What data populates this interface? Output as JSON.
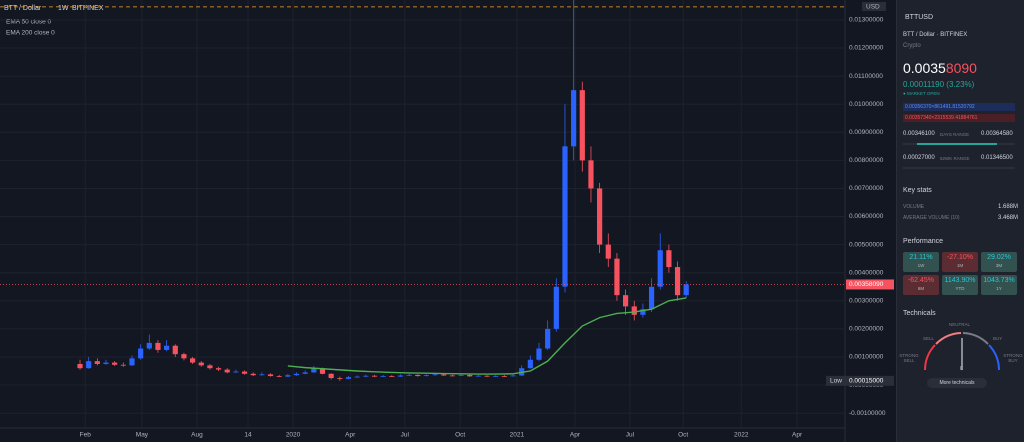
{
  "header": {
    "symbol": "BTT / Dollar",
    "interval": "1W",
    "exchange": "BITFINEX",
    "ema50": "EMA 50 close 0",
    "ema200": "EMA 200 close 0",
    "currency": "USD"
  },
  "chart_data": {
    "type": "candlestick",
    "xlim": [
      -18.48,
      176.67
    ],
    "xticks": [
      {
        "value": 1.2,
        "label": "Feb"
      },
      {
        "value": 14.3,
        "label": "May"
      },
      {
        "value": 27,
        "label": "Aug"
      },
      {
        "value": 38.8,
        "label": "14"
      },
      {
        "value": 49.2,
        "label": "2020"
      },
      {
        "value": 62.4,
        "label": "Apr"
      },
      {
        "value": 75,
        "label": "Jul"
      },
      {
        "value": 87.8,
        "label": "Oct"
      },
      {
        "value": 100.9,
        "label": "2021"
      },
      {
        "value": 114.3,
        "label": "Apr"
      },
      {
        "value": 127,
        "label": "Jul"
      },
      {
        "value": 139.3,
        "label": "Oct"
      },
      {
        "value": 152.7,
        "label": "2022"
      },
      {
        "value": 165.6,
        "label": "Apr"
      }
    ],
    "ylim": [
      -0.00153,
      0.01371
    ],
    "yticks": [
      {
        "value": 0.013,
        "label": "0.01300000"
      },
      {
        "value": 0.012,
        "label": "0.01200000"
      },
      {
        "value": 0.011,
        "label": "0.01100000"
      },
      {
        "value": 0.01,
        "label": "0.01000000"
      },
      {
        "value": 0.009,
        "label": "0.00900000"
      },
      {
        "value": 0.008,
        "label": "0.00800000"
      },
      {
        "value": 0.007,
        "label": "0.00700000"
      },
      {
        "value": 0.006,
        "label": "0.00600000"
      },
      {
        "value": 0.005,
        "label": "0.00500000"
      },
      {
        "value": 0.004,
        "label": "0.00400000"
      },
      {
        "value": 0.003,
        "label": "0.00300000"
      },
      {
        "value": 0.002,
        "label": "0.00200000"
      },
      {
        "value": 0.001,
        "label": "0.00100000"
      },
      {
        "value": 0,
        "label": "0.00000000"
      },
      {
        "value": -0.001,
        "label": "-0.00100000"
      }
    ],
    "grid": true,
    "up_color": "#2962ff",
    "down_color": "#f7525f",
    "x": [
      0,
      2,
      4,
      6,
      8,
      10,
      12,
      14,
      16,
      18,
      20,
      22,
      24,
      26,
      28,
      30,
      32,
      34,
      36,
      38,
      40,
      42,
      44,
      46,
      48,
      50,
      52,
      54,
      56,
      58,
      60,
      62,
      64,
      66,
      68,
      70,
      72,
      74,
      76,
      78,
      80,
      82,
      84,
      86,
      88,
      90,
      92,
      94,
      96,
      98,
      100,
      102,
      104,
      106,
      108,
      110,
      112,
      114,
      116,
      118,
      120,
      122,
      124,
      126,
      128,
      130,
      132,
      134,
      136,
      138,
      140
    ],
    "open": [
      0.00075,
      0.0006,
      0.00085,
      0.00075,
      0.0008,
      0.00072,
      0.0007,
      0.00095,
      0.0013,
      0.0015,
      0.00125,
      0.0014,
      0.0011,
      0.00095,
      0.0008,
      0.0007,
      0.0006,
      0.00055,
      0.00045,
      0.00048,
      0.0004,
      0.00035,
      0.00038,
      0.00032,
      0.0003,
      0.00035,
      0.0004,
      0.00045,
      0.0006,
      0.0004,
      0.00025,
      0.00022,
      0.00028,
      0.0003,
      0.00033,
      0.0003,
      0.00032,
      0.0003,
      0.00034,
      0.00036,
      0.00032,
      0.00035,
      0.00038,
      0.00034,
      0.00033,
      0.00036,
      0.00031,
      0.00033,
      0.0003,
      0.00032,
      0.00031,
      0.00034,
      0.0006,
      0.0009,
      0.0013,
      0.002,
      0.0035,
      0.0085,
      0.0105,
      0.008,
      0.007,
      0.005,
      0.0045,
      0.0032,
      0.0028,
      0.0025,
      0.0027,
      0.0035,
      0.0048,
      0.0042,
      0.0032
    ],
    "high": [
      0.0009,
      0.001,
      0.00095,
      0.0009,
      0.00085,
      0.0008,
      0.00105,
      0.00145,
      0.0018,
      0.0016,
      0.0016,
      0.00145,
      0.00115,
      0.001,
      0.00085,
      0.00075,
      0.00065,
      0.0006,
      0.00055,
      0.00052,
      0.00045,
      0.00045,
      0.00042,
      0.00036,
      0.0004,
      0.00045,
      0.00052,
      0.00068,
      0.00062,
      0.00042,
      0.0003,
      0.00032,
      0.00034,
      0.00037,
      0.00036,
      0.00036,
      0.00035,
      0.00038,
      0.0004,
      0.00038,
      0.00038,
      0.00042,
      0.0004,
      0.00037,
      0.00039,
      0.00038,
      0.00036,
      0.00035,
      0.00035,
      0.00035,
      0.00038,
      0.0007,
      0.00105,
      0.0015,
      0.0023,
      0.0038,
      0.01,
      0.01371,
      0.0108,
      0.0085,
      0.0072,
      0.0054,
      0.0047,
      0.0034,
      0.003,
      0.0029,
      0.0038,
      0.0054,
      0.005,
      0.0044,
      0.0037
    ],
    "low": [
      0.00055,
      0.00058,
      0.0007,
      0.00072,
      0.00068,
      0.00065,
      0.00068,
      0.0009,
      0.00125,
      0.00115,
      0.0012,
      0.001,
      0.00088,
      0.00075,
      0.00065,
      0.00055,
      0.0005,
      0.00042,
      0.00043,
      0.00037,
      0.00032,
      0.00033,
      0.0003,
      0.00028,
      0.00028,
      0.00033,
      0.00038,
      0.00043,
      0.00038,
      0.0002,
      0.00015,
      0.0002,
      0.00026,
      0.00028,
      0.00028,
      0.00029,
      0.00028,
      0.00029,
      0.00032,
      0.0003,
      0.00031,
      0.00033,
      0.00032,
      0.00031,
      0.00032,
      0.00029,
      0.0003,
      0.00028,
      0.00029,
      0.00029,
      0.0003,
      0.00032,
      0.00058,
      0.00085,
      0.00125,
      0.0019,
      0.0033,
      0.008,
      0.0076,
      0.0065,
      0.0047,
      0.0042,
      0.003,
      0.0025,
      0.0023,
      0.0024,
      0.0026,
      0.0034,
      0.004,
      0.003,
      0.0031
    ],
    "close": [
      0.0006,
      0.00085,
      0.00075,
      0.0008,
      0.00072,
      0.0007,
      0.00095,
      0.0013,
      0.0015,
      0.00125,
      0.0014,
      0.0011,
      0.00095,
      0.0008,
      0.0007,
      0.0006,
      0.00055,
      0.00045,
      0.00048,
      0.0004,
      0.00035,
      0.00038,
      0.00032,
      0.0003,
      0.00035,
      0.0004,
      0.00045,
      0.0006,
      0.0004,
      0.00025,
      0.00022,
      0.00028,
      0.0003,
      0.00033,
      0.0003,
      0.00032,
      0.0003,
      0.00034,
      0.00036,
      0.00032,
      0.00035,
      0.00038,
      0.00034,
      0.00033,
      0.00036,
      0.00031,
      0.00033,
      0.0003,
      0.00032,
      0.00031,
      0.00034,
      0.0006,
      0.0009,
      0.0013,
      0.002,
      0.0035,
      0.0085,
      0.0105,
      0.008,
      0.007,
      0.005,
      0.0045,
      0.0032,
      0.0028,
      0.0025,
      0.0027,
      0.0035,
      0.0048,
      0.0042,
      0.0032,
      0.0035809
    ],
    "series": [
      {
        "name": "EMA 200",
        "color": "#4caf50",
        "x": [
          48,
          52,
          56,
          60,
          64,
          68,
          72,
          76,
          80,
          84,
          88,
          92,
          96,
          100,
          104,
          108,
          112,
          116,
          120,
          124,
          128,
          132,
          136,
          140
        ],
        "values": [
          0.00068,
          0.00062,
          0.00058,
          0.00054,
          0.0005,
          0.00047,
          0.00045,
          0.00043,
          0.00042,
          0.00041,
          0.0004,
          0.00039,
          0.00039,
          0.0004,
          0.0005,
          0.00085,
          0.0015,
          0.0021,
          0.0024,
          0.00255,
          0.0026,
          0.0027,
          0.003,
          0.0031
        ]
      }
    ],
    "high_line": 0.013465,
    "last_price_label": "0.00358090",
    "low_marker": {
      "text": "Low",
      "value": 0.00015,
      "label": "0.00015000"
    }
  },
  "panel": {
    "symbol": "BTTUSD",
    "description": "BTT / Dollar · BITFINEX",
    "kind": "Crypto",
    "price_main": "0.0035",
    "price_tail": "8090",
    "change": "0.00011190 (3.23%)",
    "status": "● MARKET OPEN",
    "bid": "0.00356370×861491.81520792",
    "ask": "0.00357340×2315539.41884761",
    "days_range": {
      "low": "0.00346100",
      "label": "DAYS RANGE",
      "high": "0.00364580"
    },
    "week52_range": {
      "low": "0.00027000",
      "label": "52WK RANGE",
      "high": "0.01346500"
    },
    "key_stats": {
      "title": "Key stats",
      "rows": [
        [
          "VOLUME",
          "1.688M"
        ],
        [
          "AVERAGE VOLUME (10)",
          "3.468M"
        ]
      ]
    },
    "performance": {
      "title": "Performance",
      "tiles": [
        [
          "21.11%",
          "1W"
        ],
        [
          "-27.10%",
          "1M"
        ],
        [
          "29.02%",
          "3M"
        ],
        [
          "-62.45%",
          "6M"
        ],
        [
          "1143.90%",
          "YTD"
        ],
        [
          "1043.73%",
          "1Y"
        ]
      ]
    },
    "technicals": {
      "title": "Technicals",
      "neutral": "NEUTRAL",
      "sell": "SELL",
      "buy": "BUY",
      "strong_sell": "STRONG SELL",
      "strong_buy": "STRONG BUY",
      "zero": "0",
      "button": "More technicals"
    }
  }
}
